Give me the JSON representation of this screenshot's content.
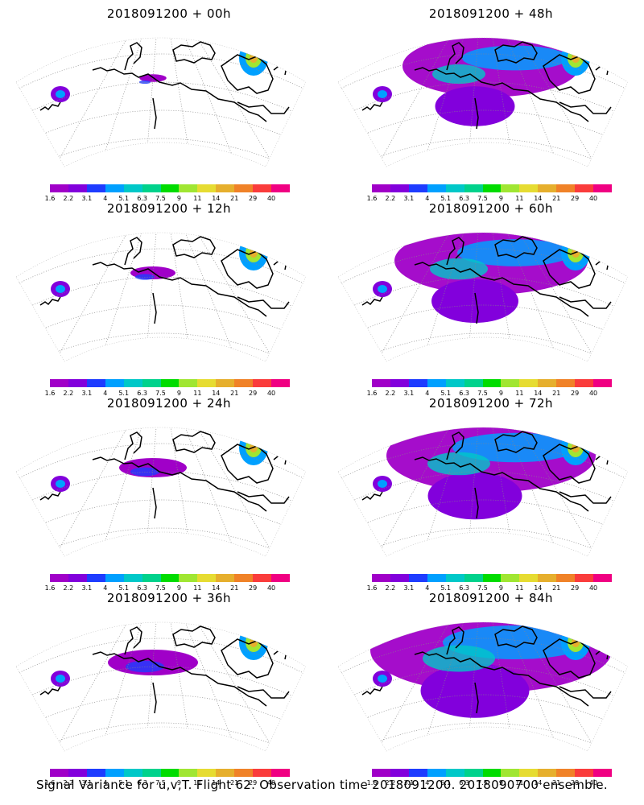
{
  "caption": "Signal Variance for u,v,T. Flight 62. Observation time 2018091200. 2018090700 ensemble.",
  "colorbar": {
    "labels": [
      "1.6",
      "2.2",
      "3.1",
      "4",
      "5.1",
      "6.3",
      "7.5",
      "9",
      "11",
      "14",
      "21",
      "29",
      "40"
    ],
    "colors": [
      "#a000c8",
      "#8200dc",
      "#1e3cff",
      "#00a0ff",
      "#00c8c8",
      "#00d28c",
      "#00dc00",
      "#a0e632",
      "#e6dc32",
      "#e6af2d",
      "#f08228",
      "#fa3c3c",
      "#f00082"
    ]
  },
  "panels": [
    {
      "title": "2018091200 + 00h",
      "coverage": 0.12
    },
    {
      "title": "2018091200 + 48h",
      "coverage": 0.55
    },
    {
      "title": "2018091200 + 12h",
      "coverage": 0.2
    },
    {
      "title": "2018091200 + 60h",
      "coverage": 0.6
    },
    {
      "title": "2018091200 + 24h",
      "coverage": 0.3
    },
    {
      "title": "2018091200 + 72h",
      "coverage": 0.65
    },
    {
      "title": "2018091200 + 36h",
      "coverage": 0.4
    },
    {
      "title": "2018091200 + 84h",
      "coverage": 0.75
    }
  ]
}
